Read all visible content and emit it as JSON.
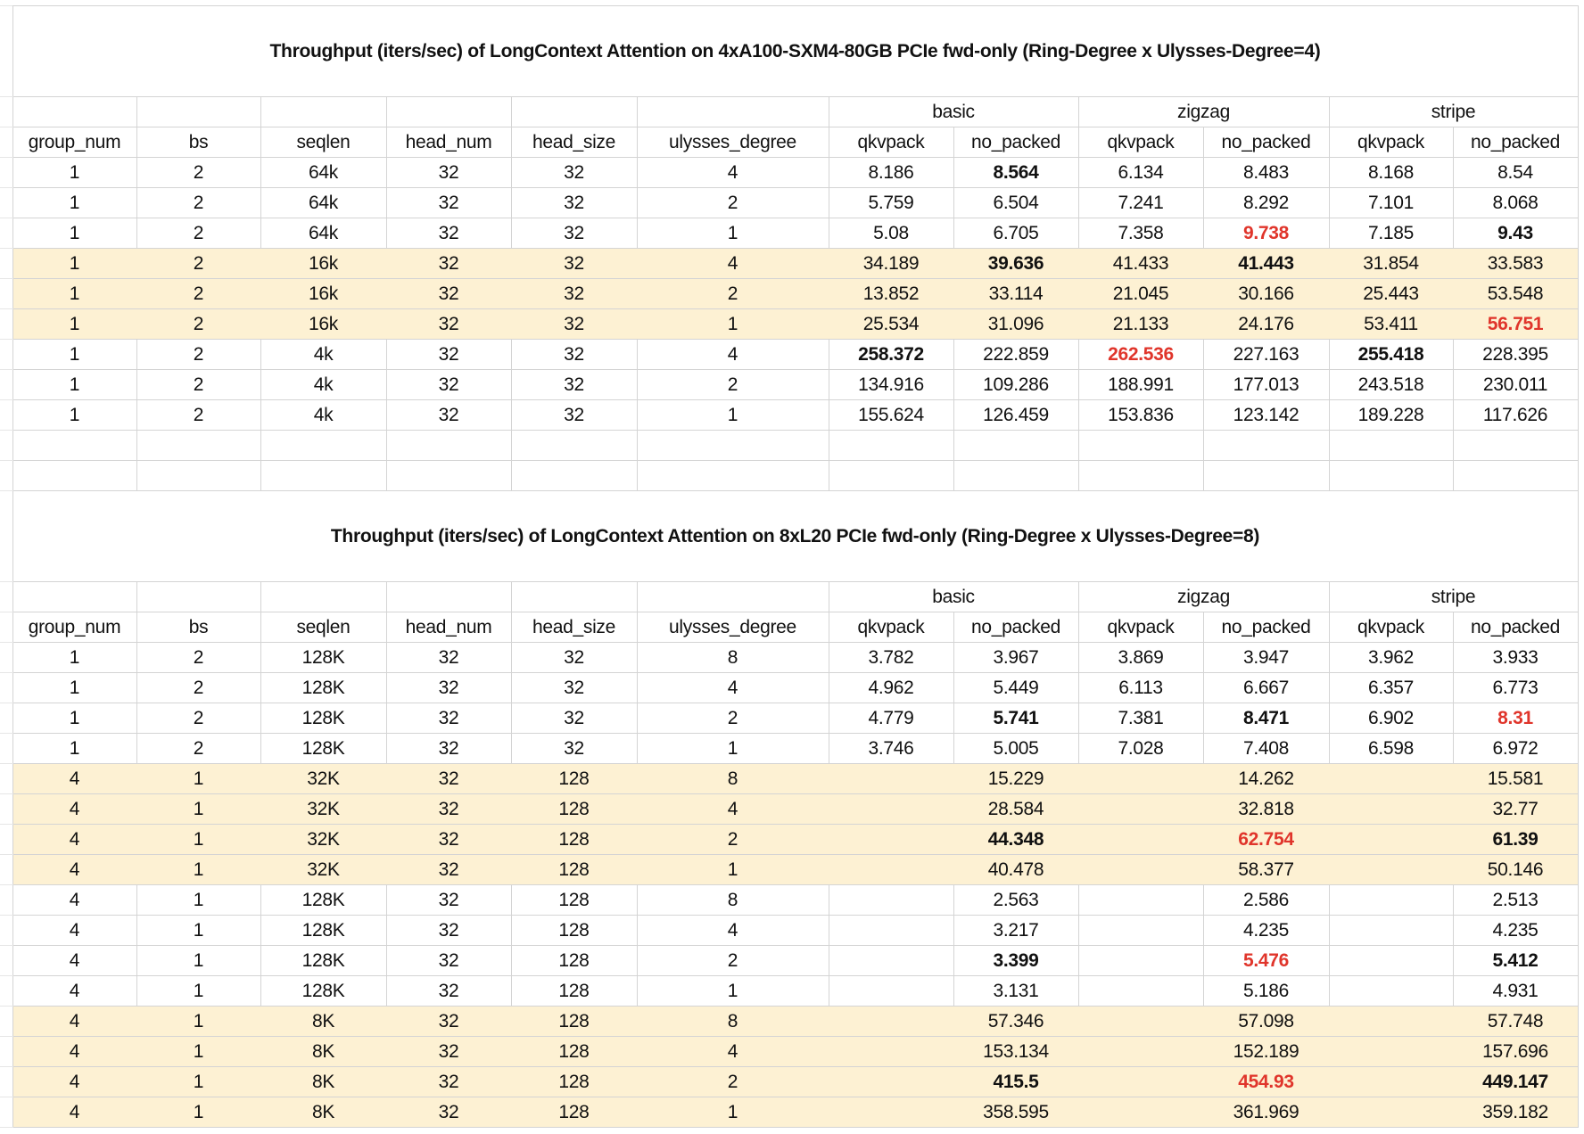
{
  "colors": {
    "highlight_fill": "#fdf1d3",
    "best_red": "#e0352b",
    "gridline": "#d4d4d4"
  },
  "tables": [
    {
      "title": "Throughput (iters/sec) of LongContext Attention on 4xA100-SXM4-80GB PCIe fwd-only (Ring-Degree x Ulysses-Degree=4)",
      "group_headers": [
        "basic",
        "zigzag",
        "stripe"
      ],
      "columns": [
        "group_num",
        "bs",
        "seqlen",
        "head_num",
        "head_size",
        "ulysses_degree",
        "qkvpack",
        "no_packed",
        "qkvpack",
        "no_packed",
        "qkvpack",
        "no_packed"
      ],
      "rows": [
        {
          "highlight": false,
          "params": [
            "1",
            "2",
            "64k",
            "32",
            "32",
            "4"
          ],
          "results": [
            {
              "v": "8.186"
            },
            {
              "v": "8.564",
              "s": "b"
            },
            {
              "v": "6.134"
            },
            {
              "v": "8.483"
            },
            {
              "v": "8.168"
            },
            {
              "v": "8.54"
            }
          ]
        },
        {
          "highlight": false,
          "params": [
            "1",
            "2",
            "64k",
            "32",
            "32",
            "2"
          ],
          "results": [
            {
              "v": "5.759"
            },
            {
              "v": "6.504"
            },
            {
              "v": "7.241"
            },
            {
              "v": "8.292"
            },
            {
              "v": "7.101"
            },
            {
              "v": "8.068"
            }
          ]
        },
        {
          "highlight": false,
          "params": [
            "1",
            "2",
            "64k",
            "32",
            "32",
            "1"
          ],
          "results": [
            {
              "v": "5.08"
            },
            {
              "v": "6.705"
            },
            {
              "v": "7.358"
            },
            {
              "v": "9.738",
              "s": "r"
            },
            {
              "v": "7.185"
            },
            {
              "v": "9.43",
              "s": "b"
            }
          ]
        },
        {
          "highlight": true,
          "params": [
            "1",
            "2",
            "16k",
            "32",
            "32",
            "4"
          ],
          "results": [
            {
              "v": "34.189"
            },
            {
              "v": "39.636",
              "s": "b"
            },
            {
              "v": "41.433"
            },
            {
              "v": "41.443",
              "s": "b"
            },
            {
              "v": "31.854"
            },
            {
              "v": "33.583"
            }
          ]
        },
        {
          "highlight": true,
          "params": [
            "1",
            "2",
            "16k",
            "32",
            "32",
            "2"
          ],
          "results": [
            {
              "v": "13.852"
            },
            {
              "v": "33.114"
            },
            {
              "v": "21.045"
            },
            {
              "v": "30.166"
            },
            {
              "v": "25.443"
            },
            {
              "v": "53.548"
            }
          ]
        },
        {
          "highlight": true,
          "params": [
            "1",
            "2",
            "16k",
            "32",
            "32",
            "1"
          ],
          "results": [
            {
              "v": "25.534"
            },
            {
              "v": "31.096"
            },
            {
              "v": "21.133"
            },
            {
              "v": "24.176"
            },
            {
              "v": "53.411"
            },
            {
              "v": "56.751",
              "s": "r"
            }
          ]
        },
        {
          "highlight": false,
          "params": [
            "1",
            "2",
            "4k",
            "32",
            "32",
            "4"
          ],
          "results": [
            {
              "v": "258.372",
              "s": "b"
            },
            {
              "v": "222.859"
            },
            {
              "v": "262.536",
              "s": "r"
            },
            {
              "v": "227.163"
            },
            {
              "v": "255.418",
              "s": "b"
            },
            {
              "v": "228.395"
            }
          ]
        },
        {
          "highlight": false,
          "params": [
            "1",
            "2",
            "4k",
            "32",
            "32",
            "2"
          ],
          "results": [
            {
              "v": "134.916"
            },
            {
              "v": "109.286"
            },
            {
              "v": "188.991"
            },
            {
              "v": "177.013"
            },
            {
              "v": "243.518"
            },
            {
              "v": "230.011"
            }
          ]
        },
        {
          "highlight": false,
          "params": [
            "1",
            "2",
            "4k",
            "32",
            "32",
            "1"
          ],
          "results": [
            {
              "v": "155.624"
            },
            {
              "v": "126.459"
            },
            {
              "v": "153.836"
            },
            {
              "v": "123.142"
            },
            {
              "v": "189.228"
            },
            {
              "v": "117.626"
            }
          ]
        }
      ]
    },
    {
      "title": "Throughput (iters/sec) of LongContext Attention on 8xL20 PCIe fwd-only (Ring-Degree x Ulysses-Degree=8)",
      "group_headers": [
        "basic",
        "zigzag",
        "stripe"
      ],
      "columns": [
        "group_num",
        "bs",
        "seqlen",
        "head_num",
        "head_size",
        "ulysses_degree",
        "qkvpack",
        "no_packed",
        "qkvpack",
        "no_packed",
        "qkvpack",
        "no_packed"
      ],
      "rows": [
        {
          "highlight": false,
          "params": [
            "1",
            "2",
            "128K",
            "32",
            "32",
            "8"
          ],
          "results": [
            {
              "v": "3.782"
            },
            {
              "v": "3.967"
            },
            {
              "v": "3.869"
            },
            {
              "v": "3.947"
            },
            {
              "v": "3.962"
            },
            {
              "v": "3.933"
            }
          ]
        },
        {
          "highlight": false,
          "params": [
            "1",
            "2",
            "128K",
            "32",
            "32",
            "4"
          ],
          "results": [
            {
              "v": "4.962"
            },
            {
              "v": "5.449"
            },
            {
              "v": "6.113"
            },
            {
              "v": "6.667"
            },
            {
              "v": "6.357"
            },
            {
              "v": "6.773"
            }
          ]
        },
        {
          "highlight": false,
          "params": [
            "1",
            "2",
            "128K",
            "32",
            "32",
            "2"
          ],
          "results": [
            {
              "v": "4.779"
            },
            {
              "v": "5.741",
              "s": "b"
            },
            {
              "v": "7.381"
            },
            {
              "v": "8.471",
              "s": "b"
            },
            {
              "v": "6.902"
            },
            {
              "v": "8.31",
              "s": "r"
            }
          ]
        },
        {
          "highlight": false,
          "params": [
            "1",
            "2",
            "128K",
            "32",
            "32",
            "1"
          ],
          "results": [
            {
              "v": "3.746"
            },
            {
              "v": "5.005"
            },
            {
              "v": "7.028"
            },
            {
              "v": "7.408"
            },
            {
              "v": "6.598"
            },
            {
              "v": "6.972"
            }
          ]
        },
        {
          "highlight": true,
          "params": [
            "4",
            "1",
            "32K",
            "32",
            "128",
            "8"
          ],
          "results": [
            {
              "v": ""
            },
            {
              "v": "15.229"
            },
            {
              "v": ""
            },
            {
              "v": "14.262"
            },
            {
              "v": ""
            },
            {
              "v": "15.581"
            }
          ]
        },
        {
          "highlight": true,
          "params": [
            "4",
            "1",
            "32K",
            "32",
            "128",
            "4"
          ],
          "results": [
            {
              "v": ""
            },
            {
              "v": "28.584"
            },
            {
              "v": ""
            },
            {
              "v": "32.818"
            },
            {
              "v": ""
            },
            {
              "v": "32.77"
            }
          ]
        },
        {
          "highlight": true,
          "params": [
            "4",
            "1",
            "32K",
            "32",
            "128",
            "2"
          ],
          "results": [
            {
              "v": ""
            },
            {
              "v": "44.348",
              "s": "b"
            },
            {
              "v": ""
            },
            {
              "v": "62.754",
              "s": "r"
            },
            {
              "v": ""
            },
            {
              "v": "61.39",
              "s": "b"
            }
          ]
        },
        {
          "highlight": true,
          "params": [
            "4",
            "1",
            "32K",
            "32",
            "128",
            "1"
          ],
          "results": [
            {
              "v": ""
            },
            {
              "v": "40.478"
            },
            {
              "v": ""
            },
            {
              "v": "58.377"
            },
            {
              "v": ""
            },
            {
              "v": "50.146"
            }
          ]
        },
        {
          "highlight": false,
          "params": [
            "4",
            "1",
            "128K",
            "32",
            "128",
            "8"
          ],
          "results": [
            {
              "v": ""
            },
            {
              "v": "2.563"
            },
            {
              "v": ""
            },
            {
              "v": "2.586"
            },
            {
              "v": ""
            },
            {
              "v": "2.513"
            }
          ]
        },
        {
          "highlight": false,
          "params": [
            "4",
            "1",
            "128K",
            "32",
            "128",
            "4"
          ],
          "results": [
            {
              "v": ""
            },
            {
              "v": "3.217"
            },
            {
              "v": ""
            },
            {
              "v": "4.235"
            },
            {
              "v": ""
            },
            {
              "v": "4.235"
            }
          ]
        },
        {
          "highlight": false,
          "params": [
            "4",
            "1",
            "128K",
            "32",
            "128",
            "2"
          ],
          "results": [
            {
              "v": ""
            },
            {
              "v": "3.399",
              "s": "b"
            },
            {
              "v": ""
            },
            {
              "v": "5.476",
              "s": "r"
            },
            {
              "v": ""
            },
            {
              "v": "5.412",
              "s": "b"
            }
          ]
        },
        {
          "highlight": false,
          "params": [
            "4",
            "1",
            "128K",
            "32",
            "128",
            "1"
          ],
          "results": [
            {
              "v": ""
            },
            {
              "v": "3.131"
            },
            {
              "v": ""
            },
            {
              "v": "5.186"
            },
            {
              "v": ""
            },
            {
              "v": "4.931"
            }
          ]
        },
        {
          "highlight": true,
          "params": [
            "4",
            "1",
            "8K",
            "32",
            "128",
            "8"
          ],
          "results": [
            {
              "v": ""
            },
            {
              "v": "57.346"
            },
            {
              "v": ""
            },
            {
              "v": "57.098"
            },
            {
              "v": ""
            },
            {
              "v": "57.748"
            }
          ]
        },
        {
          "highlight": true,
          "params": [
            "4",
            "1",
            "8K",
            "32",
            "128",
            "4"
          ],
          "results": [
            {
              "v": ""
            },
            {
              "v": "153.134"
            },
            {
              "v": ""
            },
            {
              "v": "152.189"
            },
            {
              "v": ""
            },
            {
              "v": "157.696"
            }
          ]
        },
        {
          "highlight": true,
          "params": [
            "4",
            "1",
            "8K",
            "32",
            "128",
            "2"
          ],
          "results": [
            {
              "v": ""
            },
            {
              "v": "415.5",
              "s": "b"
            },
            {
              "v": ""
            },
            {
              "v": "454.93",
              "s": "r"
            },
            {
              "v": ""
            },
            {
              "v": "449.147",
              "s": "b"
            }
          ]
        },
        {
          "highlight": true,
          "params": [
            "4",
            "1",
            "8K",
            "32",
            "128",
            "1"
          ],
          "results": [
            {
              "v": ""
            },
            {
              "v": "358.595"
            },
            {
              "v": ""
            },
            {
              "v": "361.969"
            },
            {
              "v": ""
            },
            {
              "v": "359.182"
            }
          ]
        }
      ]
    }
  ]
}
